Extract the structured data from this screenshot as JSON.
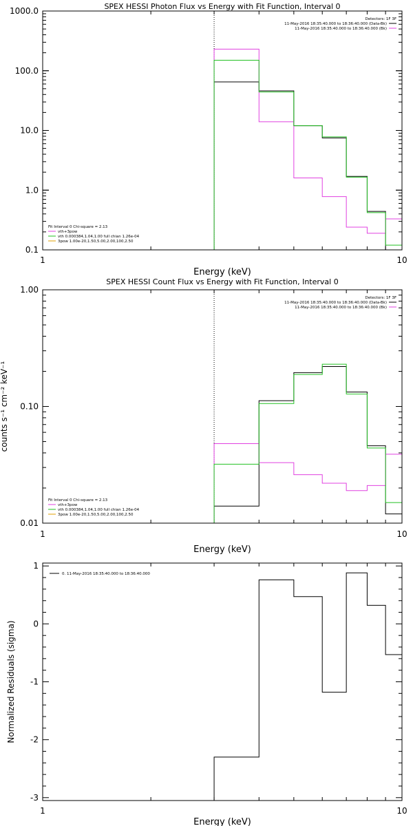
{
  "colors": {
    "black": "#000000",
    "magenta": "#e040e0",
    "green": "#22c022",
    "orange": "#e0a000"
  },
  "chart_data": [
    {
      "type": "line",
      "step": true,
      "title": "SPEX HESSI Photon Flux vs Energy with Fit Function, Interval 0",
      "xlabel": "Energy (keV)",
      "ylabel": "",
      "xscale": "log",
      "yscale": "log",
      "xlim": [
        1,
        10
      ],
      "ylim": [
        0.1,
        1000
      ],
      "xticks": [
        {
          "v": 1,
          "label": "1"
        },
        {
          "v": 10,
          "label": "10"
        }
      ],
      "yticks": [
        {
          "v": 0.1,
          "label": "0.1"
        },
        {
          "v": 1,
          "label": "1.0"
        },
        {
          "v": 10,
          "label": "10.0"
        },
        {
          "v": 100,
          "label": "100.0"
        },
        {
          "v": 1000,
          "label": "1000.0"
        }
      ],
      "vline_x": 3.0,
      "bin_edges": [
        3.0,
        4.0,
        5.0,
        6.0,
        7.0,
        8.0,
        9.0,
        10.0
      ],
      "series": [
        {
          "color": "black",
          "values": [
            65,
            46,
            12,
            7.5,
            1.7,
            0.44,
            0.1
          ]
        },
        {
          "color": "magenta",
          "values": [
            230,
            14,
            1.6,
            0.78,
            0.24,
            0.19,
            0.33
          ]
        },
        {
          "color": "green",
          "values": [
            150,
            44,
            12,
            7.8,
            1.65,
            0.42,
            0.12
          ]
        }
      ],
      "legend_tr": {
        "header": "Detectors: 1F 3F",
        "entries": [
          {
            "text": "11-May-2016 18:35:40.000 to 18:36:40.000 (Data-Bk)",
            "color": "black"
          },
          {
            "text": "11-May-2016 18:35:40.000 to 18:36:40.000 (Bk)",
            "color": "magenta"
          }
        ]
      },
      "legend_bl": {
        "header": "Fit Interval 0   Chi-square = 2.13",
        "entries": [
          {
            "text": "vth+3pow",
            "color": "magenta"
          },
          {
            "text": "vth 0.000384,1.04,1.00  full chian 1.26e-04",
            "color": "green"
          },
          {
            "text": "3pow 1.00e-20,1.50,5.00,2.00,100,2.50",
            "color": "orange"
          }
        ]
      }
    },
    {
      "type": "line",
      "step": true,
      "title": "SPEX HESSI Count Flux vs Energy with Fit Function, Interval 0",
      "xlabel": "Energy (keV)",
      "ylabel": "counts s⁻¹ cm⁻² keV⁻¹",
      "xscale": "log",
      "yscale": "log",
      "xlim": [
        1,
        10
      ],
      "ylim": [
        0.01,
        1.0
      ],
      "xticks": [
        {
          "v": 1,
          "label": "1"
        },
        {
          "v": 10,
          "label": "10"
        }
      ],
      "yticks": [
        {
          "v": 0.01,
          "label": "0.01"
        },
        {
          "v": 0.1,
          "label": "0.10"
        },
        {
          "v": 1,
          "label": "1.00"
        }
      ],
      "vline_x": 3.0,
      "bin_edges": [
        3.0,
        4.0,
        5.0,
        6.0,
        7.0,
        8.0,
        9.0,
        10.0
      ],
      "series": [
        {
          "color": "black",
          "values": [
            0.014,
            0.112,
            0.195,
            0.22,
            0.133,
            0.046,
            0.012
          ]
        },
        {
          "color": "magenta",
          "values": [
            0.048,
            0.033,
            0.026,
            0.022,
            0.019,
            0.021,
            0.039
          ]
        },
        {
          "color": "green",
          "values": [
            0.032,
            0.106,
            0.188,
            0.23,
            0.128,
            0.044,
            0.015
          ]
        }
      ],
      "legend_tr": {
        "header": "Detectors: 1F 3F",
        "entries": [
          {
            "text": "11-May-2016 18:35:40.000 to 18:36:40.000 (Data-Bk)",
            "color": "black"
          },
          {
            "text": "11-May-2016 18:35:40.000 to 18:36:40.000 (Bk)",
            "color": "magenta"
          }
        ]
      },
      "legend_bl": {
        "header": "Fit Interval 0   Chi-square = 2.13",
        "entries": [
          {
            "text": "vth+3pow",
            "color": "magenta"
          },
          {
            "text": "vth 0.000384,1.04,1.00  full chian 1.26e-04",
            "color": "green"
          },
          {
            "text": "3pow 1.00e-20,1.50,5.00,2.00,100,2.50",
            "color": "orange"
          }
        ]
      }
    },
    {
      "type": "line",
      "step": true,
      "title": "",
      "xlabel": "Energy (keV)",
      "ylabel": "Normalized Residuals (sigma)",
      "xscale": "log",
      "yscale": "linear",
      "xlim": [
        1,
        10
      ],
      "ylim": [
        -3.05,
        1.05
      ],
      "xticks": [
        {
          "v": 1,
          "label": "1"
        },
        {
          "v": 10,
          "label": "10"
        }
      ],
      "yticks": [
        {
          "v": -3,
          "label": "-3"
        },
        {
          "v": -2,
          "label": "-2"
        },
        {
          "v": -1,
          "label": "-1"
        },
        {
          "v": 0,
          "label": "0"
        },
        {
          "v": 1,
          "label": "1"
        }
      ],
      "bin_edges": [
        3.0,
        4.0,
        5.0,
        6.0,
        7.0,
        8.0,
        9.0,
        10.0
      ],
      "series": [
        {
          "color": "black",
          "values": [
            -2.3,
            0.76,
            0.47,
            -1.18,
            0.88,
            0.32,
            -0.53
          ],
          "name": "0. 11-May-2016 18:35:40.000 to 18:36:40.000"
        }
      ],
      "legend_tl": {
        "entries": [
          {
            "text": "0. 11-May-2016 18:35:40.000 to 18:36:40.000",
            "color": "black"
          }
        ]
      }
    }
  ]
}
